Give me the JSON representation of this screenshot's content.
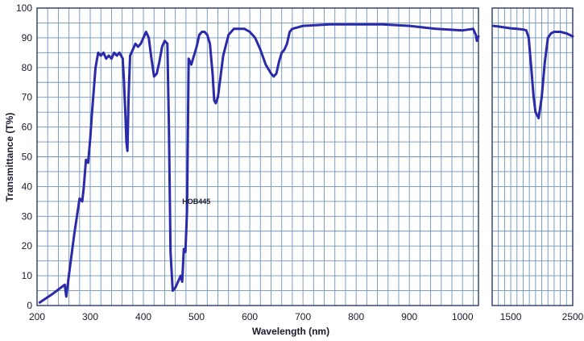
{
  "chart_data": {
    "type": "line",
    "title": "",
    "xlabel": "Wavelength (nm)",
    "ylabel": "Transmittance (T%)",
    "ylim": [
      0,
      100
    ],
    "y_ticks": [
      0,
      10,
      20,
      30,
      40,
      50,
      60,
      70,
      80,
      90,
      100
    ],
    "grid": true,
    "line_color": "#2b2aa8",
    "panels": [
      {
        "xlim": [
          200,
          1030
        ],
        "x_ticks": [
          {
            "value": 200,
            "label": "200"
          },
          {
            "value": 300,
            "label": "300"
          },
          {
            "value": 400,
            "label": "400"
          },
          {
            "value": 500,
            "label": "500"
          },
          {
            "value": 600,
            "label": "600"
          },
          {
            "value": 700,
            "label": "700"
          },
          {
            "value": 800,
            "label": "800"
          },
          {
            "value": 900,
            "label": "900"
          },
          {
            "value": 1000,
            "label": "1000"
          }
        ]
      },
      {
        "xlim": [
          1200,
          2500
        ],
        "x_ticks": [
          {
            "value": 1500,
            "label": "1500"
          },
          {
            "value": 2000,
            "label": ""
          },
          {
            "value": 2500,
            "label": "2500"
          }
        ]
      }
    ],
    "annotations": [
      {
        "text": "HOB445",
        "x": 470,
        "y": 35
      }
    ],
    "series": [
      {
        "x": [
          205,
          230,
          252,
          255,
          257,
          262,
          270,
          280,
          285,
          288,
          292,
          296,
          300,
          303,
          306,
          310,
          315,
          320,
          325,
          330,
          335,
          340,
          345,
          350,
          355,
          358,
          361,
          363,
          366,
          368,
          370,
          372,
          375,
          380,
          385,
          390,
          395,
          400,
          405,
          410,
          415,
          420,
          425,
          430,
          435,
          440,
          445,
          448,
          451,
          455,
          460,
          465,
          470,
          473,
          476,
          479,
          482,
          485,
          490,
          495,
          500,
          505,
          510,
          515,
          520,
          525,
          530,
          533,
          536,
          540,
          545,
          550,
          560,
          570,
          580,
          590,
          600,
          610,
          620,
          630,
          640,
          645,
          650,
          655,
          660,
          665,
          670,
          675,
          680,
          700,
          750,
          800,
          850,
          900,
          950,
          1000,
          1020,
          1025,
          1027,
          1030
        ],
        "y": [
          1,
          4,
          7,
          3,
          6,
          13,
          24,
          36,
          35,
          40,
          49,
          48,
          56,
          64,
          71,
          80,
          85,
          84,
          85,
          83,
          84,
          83,
          85,
          84,
          85,
          84,
          83,
          77,
          65,
          55,
          52,
          70,
          84,
          86,
          88,
          87,
          88,
          90,
          92,
          90,
          83,
          77,
          78,
          82,
          87,
          89,
          88,
          60,
          18,
          5,
          6,
          8,
          10,
          8,
          19,
          18,
          32,
          83,
          81,
          84,
          87,
          91,
          92,
          92,
          91,
          88,
          78,
          69,
          68,
          70,
          77,
          84,
          91,
          93,
          93,
          93,
          92,
          90,
          86,
          81,
          78,
          77,
          78,
          82,
          85,
          86,
          88,
          92,
          93,
          94,
          94.5,
          94.5,
          94.5,
          94,
          93,
          92.5,
          93,
          91,
          89,
          90.5
        ]
      },
      {
        "x": [
          1220,
          1300,
          1400,
          1500,
          1600,
          1700,
          1750,
          1790,
          1810,
          1830,
          1850,
          1870,
          1900,
          1950,
          2000,
          2050,
          2100,
          2150,
          2200,
          2300,
          2400,
          2500
        ],
        "y": [
          94,
          93.8,
          93.5,
          93.2,
          93,
          92.8,
          92.5,
          90,
          85,
          80,
          75,
          70,
          65,
          63,
          70,
          82,
          90,
          91.5,
          92,
          92,
          91.5,
          90.5
        ]
      }
    ]
  }
}
